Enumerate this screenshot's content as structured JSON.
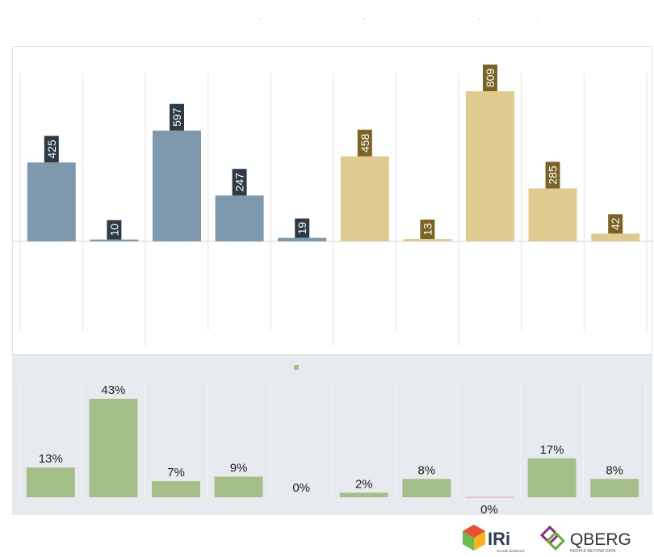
{
  "colors": {
    "top_group_a": "#7e99ad",
    "top_group_b": "#dfca90",
    "top_label_bg_a": "#2e3a46",
    "top_label_bg_b": "#7b6327",
    "bottom_bar": "#a5bf8b",
    "bottom_zero_line": "#e8a0a0",
    "divider": "#e3e3e3",
    "baseline": "#d0d0d0"
  },
  "chart_data": [
    {
      "type": "bar",
      "labels_rotated": true,
      "values": [
        425,
        10,
        597,
        247,
        19,
        458,
        13,
        809,
        285,
        42
      ],
      "color_groups": [
        "a",
        "a",
        "a",
        "a",
        "a",
        "b",
        "b",
        "b",
        "b",
        "b"
      ],
      "ylim": [
        0,
        809
      ],
      "grid": false
    },
    {
      "type": "bar",
      "values": [
        13,
        43,
        7,
        9,
        0,
        2,
        8,
        0,
        17,
        8
      ],
      "labels": [
        "13%",
        "43%",
        "7%",
        "9%",
        "0%",
        "2%",
        "8%",
        "0%",
        "17%",
        "8%"
      ],
      "zero_line_index": 7,
      "ylim": [
        0,
        43
      ],
      "grid": false
    }
  ],
  "logos": {
    "iri": {
      "word": "IRi",
      "tagline": "Growth delivered."
    },
    "qberg": {
      "word": "QBERG",
      "tagline": "PEOPLE BEYOND DATA"
    }
  }
}
